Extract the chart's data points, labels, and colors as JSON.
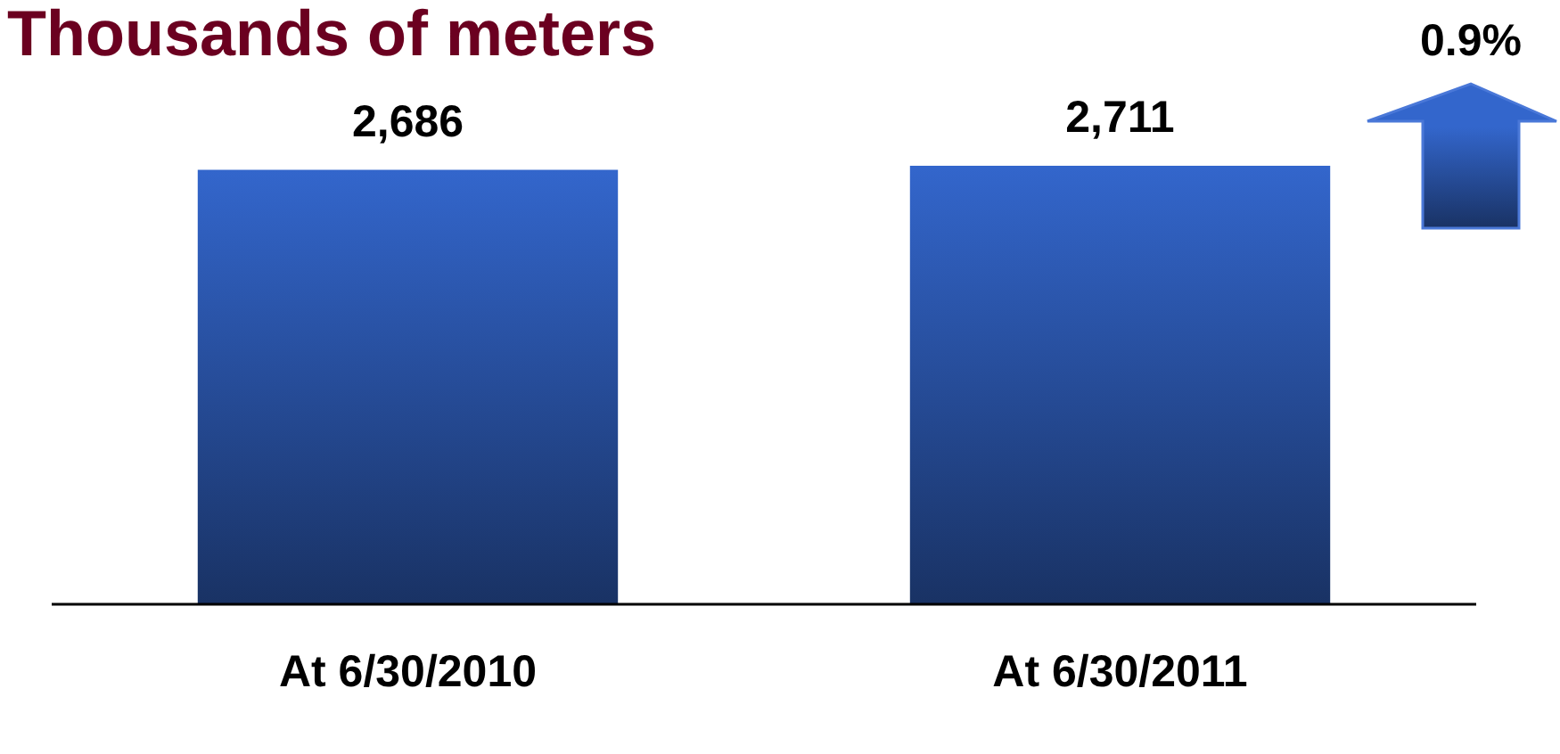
{
  "chart_data": {
    "type": "bar",
    "title": "Thousands of meters",
    "categories": [
      "At 6/30/2010",
      "At 6/30/2011"
    ],
    "values": [
      2686,
      2711
    ],
    "value_labels": [
      "2,686",
      "2,711"
    ],
    "color": "#3366cc",
    "annotations": [
      "0.9%"
    ]
  }
}
